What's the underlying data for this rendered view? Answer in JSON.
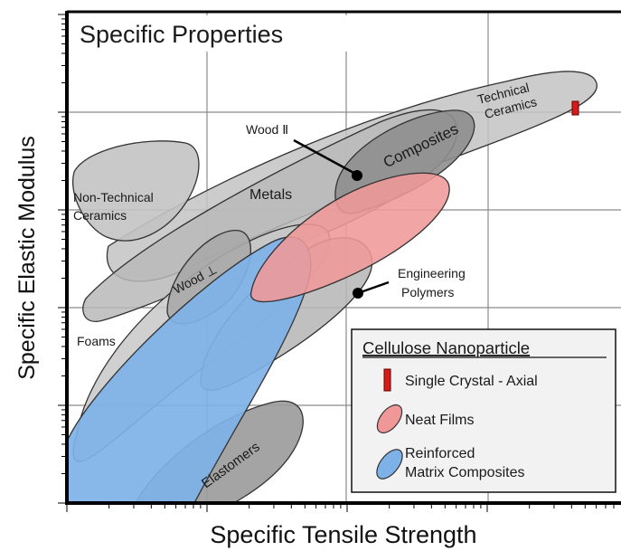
{
  "chart_data": {
    "type": "scatter",
    "title": "Specific Properties",
    "xlabel": "Specific Tensile Strength",
    "ylabel": "Specific Elastic Modulus",
    "xscale": "log",
    "yscale": "log",
    "grid": true,
    "legend_position": "bottom-right",
    "legend_title": "Cellulose Nanoparticle",
    "regions": [
      {
        "name": "Technical Ceramics",
        "label_lines": [
          "Technical",
          "Ceramics"
        ],
        "color": "#bdbdbd"
      },
      {
        "name": "Non-Technical Ceramics",
        "label_lines": [
          "Non-Technical",
          "Ceramics"
        ],
        "color": "#bdbdbd"
      },
      {
        "name": "Metals",
        "label_lines": [
          "Metals"
        ],
        "color": "#bdbdbd"
      },
      {
        "name": "Composites",
        "label_lines": [
          "Composites"
        ],
        "color": "#8c8c8c"
      },
      {
        "name": "Wood ⊥",
        "label_lines": [
          "Wood ⊥"
        ],
        "color": "#a6a6a6"
      },
      {
        "name": "Foams",
        "label_lines": [
          "Foams"
        ],
        "color": "#c4c4c4"
      },
      {
        "name": "Elastomers",
        "label_lines": [
          "Elastomers"
        ],
        "color": "#9e9e9e"
      },
      {
        "name": "Engineering Polymers",
        "label_lines": [
          "Engineering",
          "Polymers"
        ],
        "color": "#b3b3b3"
      }
    ],
    "callouts": [
      {
        "text": "Wood Ⅱ"
      }
    ],
    "series": [
      {
        "name": "Single Crystal - Axial",
        "color": "#d41a1a"
      },
      {
        "name": "Neat Films",
        "color": "#f08a8a"
      },
      {
        "name": "Reinforced Matrix Composites",
        "label_lines": [
          "Reinforced",
          "Matrix Composites"
        ],
        "color": "#7fb0e6"
      }
    ]
  }
}
